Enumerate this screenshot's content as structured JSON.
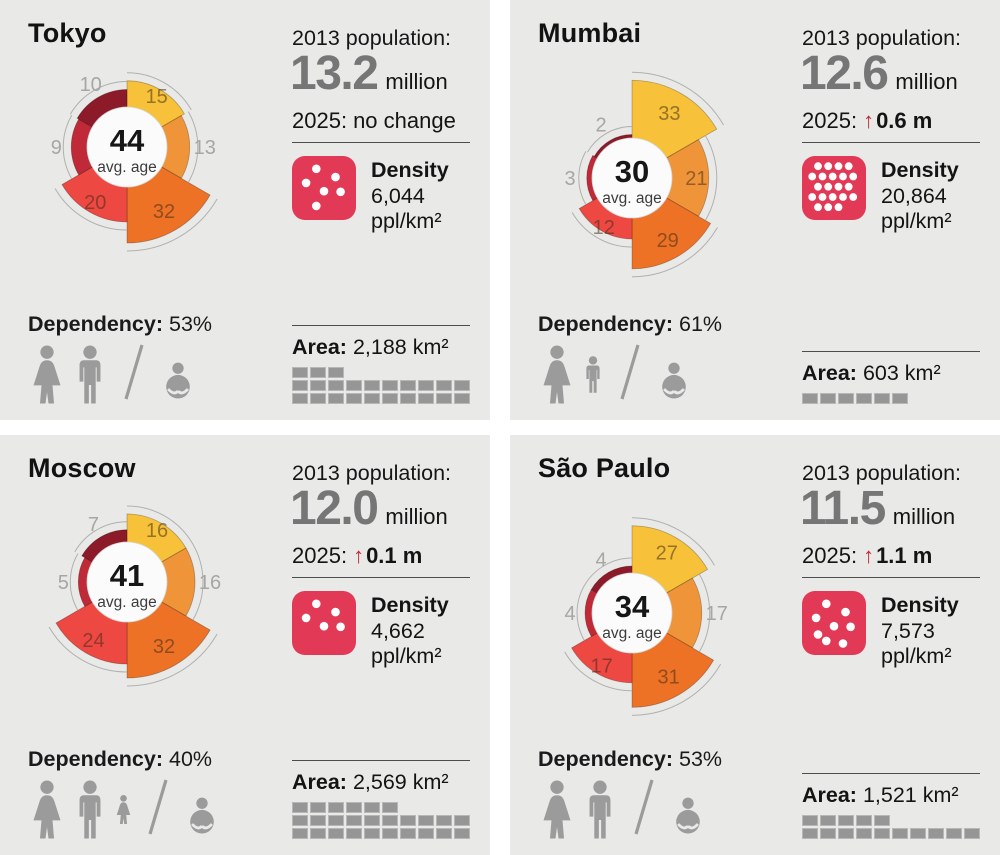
{
  "page_title": "Megacities age profile infographic",
  "icons": {
    "up_arrow": "↑"
  },
  "chart_colors": [
    "#F7C139",
    "#F0943A",
    "#ED7226",
    "#EE4843",
    "#C02A38",
    "#8D1A28"
  ],
  "accent_colors": {
    "density_badge": "#E23A56",
    "arrow_red": "#C22732",
    "big_number_gray": "#767676",
    "pictogram_gray": "#9B9B9B"
  },
  "cities": [
    {
      "name": "Tokyo",
      "avg_age": "44",
      "avg_age_label": "avg. age",
      "population_label": "2013 population:",
      "population_value": "13.2",
      "population_unit": "million",
      "forecast_label": "2025:",
      "forecast_arrow": false,
      "forecast_value": "no change",
      "density_title": "Density",
      "density_value": "6,044",
      "density_unit": "ppl/km²",
      "density_dots": 6,
      "area_label": "Area:",
      "area_value": "2,188 km²",
      "area_squares": [
        3,
        10,
        10
      ],
      "dependency_label": "Dependency:",
      "dependency_value": "53%",
      "dependency_icons": [
        {
          "type": "woman",
          "fraction": 1
        },
        {
          "type": "man",
          "fraction": 1
        }
      ],
      "segments": [
        {
          "value": 15,
          "label_outside": false
        },
        {
          "value": 13,
          "label_outside": true
        },
        {
          "value": 32,
          "label_outside": false
        },
        {
          "value": 20,
          "label_outside": false
        },
        {
          "value": 9,
          "label_outside": true
        },
        {
          "value": 10,
          "label_outside": true
        }
      ]
    },
    {
      "name": "Mumbai",
      "avg_age": "30",
      "avg_age_label": "avg. age",
      "population_label": "2013 population:",
      "population_value": "12.6",
      "population_unit": "million",
      "forecast_label": "2025:",
      "forecast_arrow": true,
      "forecast_value": "0.6 m",
      "density_title": "Density",
      "density_value": "20,864",
      "density_unit": "ppl/km²",
      "density_dots": 21,
      "area_label": "Area:",
      "area_value": "603 km²",
      "area_squares": [
        6
      ],
      "dependency_label": "Dependency:",
      "dependency_value": "61%",
      "dependency_icons": [
        {
          "type": "woman",
          "fraction": 1
        },
        {
          "type": "man",
          "fraction": 0.62
        }
      ],
      "segments": [
        {
          "value": 33,
          "label_outside": false
        },
        {
          "value": 21,
          "label_outside": false
        },
        {
          "value": 29,
          "label_outside": false
        },
        {
          "value": 12,
          "label_outside": false
        },
        {
          "value": 3,
          "label_outside": true
        },
        {
          "value": 2,
          "label_outside": true
        }
      ]
    },
    {
      "name": "Moscow",
      "avg_age": "41",
      "avg_age_label": "avg. age",
      "population_label": "2013 population:",
      "population_value": "12.0",
      "population_unit": "million",
      "forecast_label": "2025:",
      "forecast_arrow": true,
      "forecast_value": "0.1 m",
      "density_title": "Density",
      "density_value": "4,662",
      "density_unit": "ppl/km²",
      "density_dots": 5,
      "area_label": "Area:",
      "area_value": "2,569 km²",
      "area_squares": [
        6,
        10,
        10
      ],
      "dependency_label": "Dependency:",
      "dependency_value": "40%",
      "dependency_icons": [
        {
          "type": "woman",
          "fraction": 1
        },
        {
          "type": "man",
          "fraction": 1
        },
        {
          "type": "woman",
          "fraction": 0.5
        }
      ],
      "segments": [
        {
          "value": 16,
          "label_outside": false
        },
        {
          "value": 16,
          "label_outside": true
        },
        {
          "value": 32,
          "label_outside": false
        },
        {
          "value": 24,
          "label_outside": false
        },
        {
          "value": 5,
          "label_outside": true
        },
        {
          "value": 7,
          "label_outside": true
        }
      ]
    },
    {
      "name": "São Paulo",
      "avg_age": "34",
      "avg_age_label": "avg. age",
      "population_label": "2013 population:",
      "population_value": "11.5",
      "population_unit": "million",
      "forecast_label": "2025:",
      "forecast_arrow": true,
      "forecast_value": "1.1 m",
      "density_title": "Density",
      "density_value": "7,573",
      "density_unit": "ppl/km²",
      "density_dots": 8,
      "area_label": "Area:",
      "area_value": "1,521 km²",
      "area_squares": [
        5,
        10
      ],
      "dependency_label": "Dependency:",
      "dependency_value": "53%",
      "dependency_icons": [
        {
          "type": "woman",
          "fraction": 1
        },
        {
          "type": "man",
          "fraction": 1
        }
      ],
      "segments": [
        {
          "value": 27,
          "label_outside": false
        },
        {
          "value": 17,
          "label_outside": true
        },
        {
          "value": 31,
          "label_outside": false
        },
        {
          "value": 17,
          "label_outside": false
        },
        {
          "value": 4,
          "label_outside": true
        },
        {
          "value": 4,
          "label_outside": true
        }
      ]
    }
  ],
  "chart_data": [
    {
      "type": "rose",
      "title": "Tokyo age structure (% of population)",
      "values": [
        15,
        13,
        32,
        20,
        9,
        10
      ],
      "center_value": 44,
      "center_label": "avg. age",
      "start_angle_deg": 0,
      "segment_angle_deg": 60,
      "direction": "clockwise"
    },
    {
      "type": "rose",
      "title": "Mumbai age structure (% of population)",
      "values": [
        33,
        21,
        29,
        12,
        3,
        2
      ],
      "center_value": 30,
      "center_label": "avg. age",
      "start_angle_deg": 0,
      "segment_angle_deg": 60,
      "direction": "clockwise"
    },
    {
      "type": "rose",
      "title": "Moscow age structure (% of population)",
      "values": [
        16,
        16,
        32,
        24,
        5,
        7
      ],
      "center_value": 41,
      "center_label": "avg. age",
      "start_angle_deg": 0,
      "segment_angle_deg": 60,
      "direction": "clockwise"
    },
    {
      "type": "rose",
      "title": "São Paulo age structure (% of population)",
      "values": [
        27,
        17,
        31,
        17,
        4,
        4
      ],
      "center_value": 34,
      "center_label": "avg. age",
      "start_angle_deg": 0,
      "segment_angle_deg": 60,
      "direction": "clockwise"
    }
  ]
}
